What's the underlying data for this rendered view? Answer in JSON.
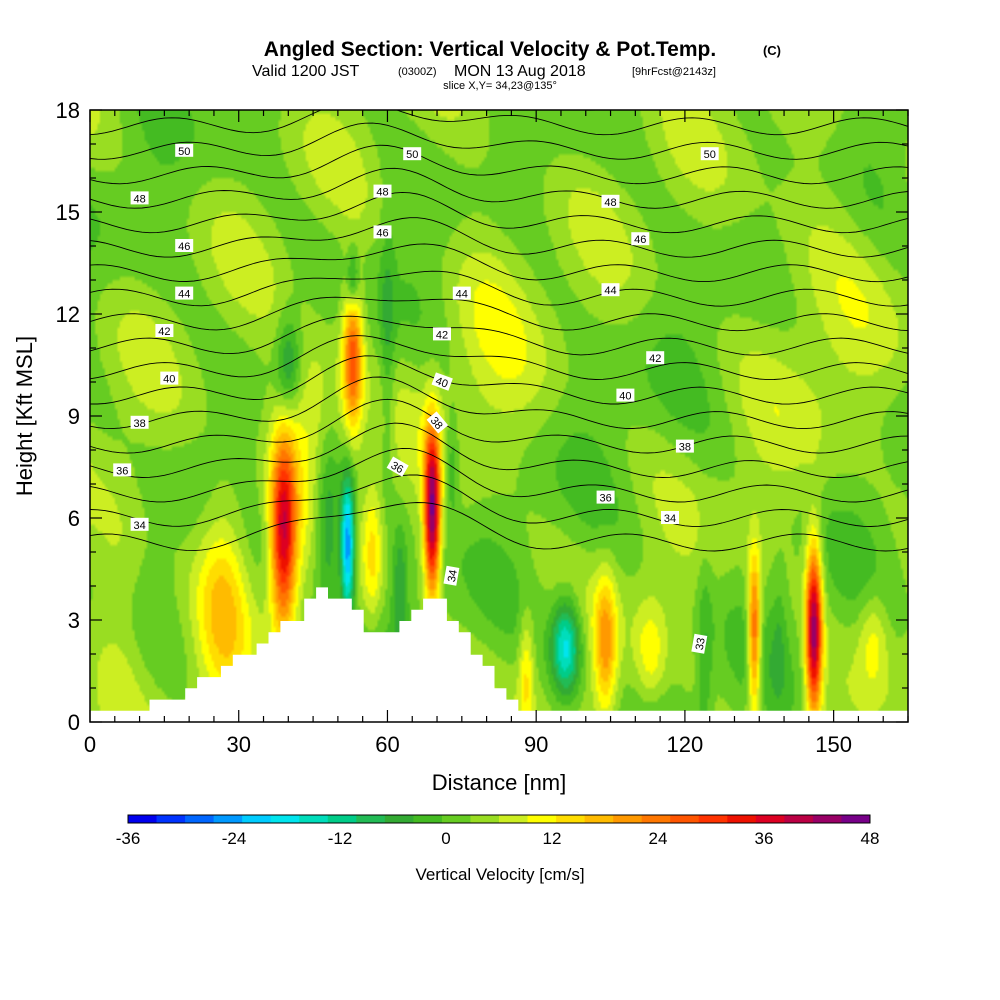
{
  "title": {
    "main": "Angled Section: Vertical Velocity & Pot.Temp.",
    "main_unit": "(C)",
    "valid_prefix": "Valid 1200 JST",
    "valid_utc": "(0300Z)",
    "valid_date": "MON 13 Aug 2018",
    "valid_fcst": "[9hrFcst@2143z]",
    "slice": "slice X,Y= 34,23@135°"
  },
  "chart_data": {
    "type": "heatmap",
    "xlabel": "Distance [nm]",
    "ylabel": "Height [Kft MSL]",
    "xlim": [
      0,
      165
    ],
    "ylim": [
      0,
      18
    ],
    "x_ticks": [
      0,
      30,
      60,
      90,
      120,
      150
    ],
    "y_ticks": [
      0,
      3,
      6,
      9,
      12,
      15,
      18
    ],
    "colorbar": {
      "label": "Vertical Velocity [cm/s]",
      "ticks": [
        -36,
        -24,
        -12,
        0,
        12,
        24,
        36,
        48
      ],
      "levels": [
        -36,
        -33,
        -30,
        -27,
        -24,
        -21,
        -18,
        -15,
        -12,
        -9,
        -6,
        -3,
        0,
        3,
        6,
        9,
        12,
        15,
        18,
        21,
        24,
        27,
        30,
        33,
        36,
        39,
        42,
        45,
        48
      ],
      "colors": [
        "#0000ee",
        "#0033ff",
        "#0066ff",
        "#0099ff",
        "#00ccff",
        "#00e5ee",
        "#00ddbb",
        "#00cc88",
        "#22bb55",
        "#33aa33",
        "#44bb22",
        "#66cc22",
        "#99dd22",
        "#ccee22",
        "#ffff00",
        "#ffdd00",
        "#ffbb00",
        "#ff9900",
        "#ff7700",
        "#ff5500",
        "#ff3300",
        "#ee1100",
        "#dd0022",
        "#bb0044",
        "#990066",
        "#770088"
      ]
    },
    "velocity_features": [
      {
        "x": 6,
        "z": 4.0,
        "w": 6,
        "rx": 6,
        "rz": 3.5
      },
      {
        "x": 27,
        "z": 3.8,
        "w": 12,
        "rx": 5,
        "rz": 3.2
      },
      {
        "x": 39,
        "z": 5.5,
        "w": 34,
        "rx": 2.6,
        "rz": 2.8
      },
      {
        "x": 45,
        "z": 9.0,
        "w": 10,
        "rx": 8,
        "rz": 2.5
      },
      {
        "x": 40,
        "z": 10.5,
        "w": -12,
        "rx": 2.5,
        "rz": 1.5
      },
      {
        "x": 52,
        "z": 5.2,
        "w": -30,
        "rx": 1.4,
        "rz": 2.0
      },
      {
        "x": 48,
        "z": 5.8,
        "w": -14,
        "rx": 2.8,
        "rz": 2.6
      },
      {
        "x": 53,
        "z": 10.8,
        "w": 24,
        "rx": 2.0,
        "rz": 2.2
      },
      {
        "x": 53,
        "z": 13.0,
        "w": -12,
        "rx": 1.2,
        "rz": 0.9
      },
      {
        "x": 57,
        "z": 5.0,
        "w": 10,
        "rx": 2.0,
        "rz": 2.0
      },
      {
        "x": 60,
        "z": 11.0,
        "w": -6,
        "rx": 1.5,
        "rz": 4.0
      },
      {
        "x": 62.5,
        "z": 4.0,
        "w": -9,
        "rx": 1.5,
        "rz": 1.8
      },
      {
        "x": 69,
        "z": 6.2,
        "w": 42,
        "rx": 1.6,
        "rz": 2.4
      },
      {
        "x": 73,
        "z": 7.5,
        "w": -8,
        "rx": 1.5,
        "rz": 1.5
      },
      {
        "x": 88,
        "z": 1.5,
        "w": 10,
        "rx": 1.5,
        "rz": 1.8
      },
      {
        "x": 96,
        "z": 2.2,
        "w": -22,
        "rx": 3.0,
        "rz": 1.4
      },
      {
        "x": 104,
        "z": 2.3,
        "w": 16,
        "rx": 2.2,
        "rz": 2.0
      },
      {
        "x": 113,
        "z": 2.0,
        "w": 8,
        "rx": 3.0,
        "rz": 1.5
      },
      {
        "x": 124,
        "z": 2.0,
        "w": -6,
        "rx": 1.5,
        "rz": 3.0
      },
      {
        "x": 134,
        "z": 2.6,
        "w": 26,
        "rx": 1.3,
        "rz": 2.3
      },
      {
        "x": 139,
        "z": 2.5,
        "w": -4,
        "rx": 1.5,
        "rz": 2.0
      },
      {
        "x": 146,
        "z": 2.7,
        "w": 40,
        "rx": 1.6,
        "rz": 2.5
      },
      {
        "x": 158,
        "z": 2.5,
        "w": 8,
        "rx": 3.0,
        "rz": 1.5
      },
      {
        "x": 80,
        "z": 12.0,
        "w": 4,
        "rx": 10,
        "rz": 5
      },
      {
        "x": 145,
        "z": 13.0,
        "w": 4,
        "rx": 12,
        "rz": 5
      }
    ],
    "terrain": [
      [
        10,
        0.4
      ],
      [
        20,
        1.0
      ],
      [
        30,
        2.0
      ],
      [
        40,
        3.0
      ],
      [
        46,
        3.9
      ],
      [
        52,
        3.5
      ],
      [
        56,
        2.6
      ],
      [
        60,
        2.5
      ],
      [
        65,
        3.5
      ],
      [
        70,
        3.5
      ],
      [
        75,
        2.5
      ],
      [
        80,
        1.3
      ],
      [
        86,
        0.5
      ],
      [
        92,
        0.4
      ],
      [
        165,
        0.4
      ]
    ],
    "isentropes": {
      "levels": [
        33,
        34,
        35,
        36,
        37,
        38,
        39,
        40,
        41,
        42,
        43,
        44,
        45,
        46,
        47,
        48,
        49,
        50,
        51
      ],
      "labels": [
        {
          "text": "50",
          "x": 19,
          "z": 16.8,
          "rot": 0
        },
        {
          "text": "48",
          "x": 10,
          "z": 15.4,
          "rot": 0
        },
        {
          "text": "46",
          "x": 19,
          "z": 14.0,
          "rot": 0
        },
        {
          "text": "44",
          "x": 19,
          "z": 12.6,
          "rot": 0
        },
        {
          "text": "42",
          "x": 15,
          "z": 11.5,
          "rot": 0
        },
        {
          "text": "40",
          "x": 16,
          "z": 10.1,
          "rot": 0
        },
        {
          "text": "38",
          "x": 10,
          "z": 8.8,
          "rot": 0
        },
        {
          "text": "36",
          "x": 6.5,
          "z": 7.4,
          "rot": 0
        },
        {
          "text": "34",
          "x": 10,
          "z": 5.8,
          "rot": 0
        },
        {
          "text": "50",
          "x": 65,
          "z": 16.7,
          "rot": 0
        },
        {
          "text": "48",
          "x": 59,
          "z": 15.6,
          "rot": 0
        },
        {
          "text": "46",
          "x": 59,
          "z": 14.4,
          "rot": 0
        },
        {
          "text": "44",
          "x": 75,
          "z": 12.6,
          "rot": 0
        },
        {
          "text": "42",
          "x": 71,
          "z": 11.4,
          "rot": 0
        },
        {
          "text": "40",
          "x": 71,
          "z": 10.0,
          "rot": 20
        },
        {
          "text": "38",
          "x": 70,
          "z": 8.8,
          "rot": 50
        },
        {
          "text": "36",
          "x": 62,
          "z": 7.5,
          "rot": 30
        },
        {
          "text": "34",
          "x": 73,
          "z": 4.3,
          "rot": -80
        },
        {
          "text": "50",
          "x": 125,
          "z": 16.7,
          "rot": 0
        },
        {
          "text": "48",
          "x": 105,
          "z": 15.3,
          "rot": 0
        },
        {
          "text": "46",
          "x": 111,
          "z": 14.2,
          "rot": 0
        },
        {
          "text": "44",
          "x": 105,
          "z": 12.7,
          "rot": 0
        },
        {
          "text": "42",
          "x": 114,
          "z": 10.7,
          "rot": 0
        },
        {
          "text": "40",
          "x": 108,
          "z": 9.6,
          "rot": 0
        },
        {
          "text": "38",
          "x": 120,
          "z": 8.1,
          "rot": 0
        },
        {
          "text": "36",
          "x": 104,
          "z": 6.6,
          "rot": 0
        },
        {
          "text": "34",
          "x": 117,
          "z": 6.0,
          "rot": 0
        },
        {
          "text": "33",
          "x": 123,
          "z": 2.3,
          "rot": -80
        }
      ]
    }
  }
}
